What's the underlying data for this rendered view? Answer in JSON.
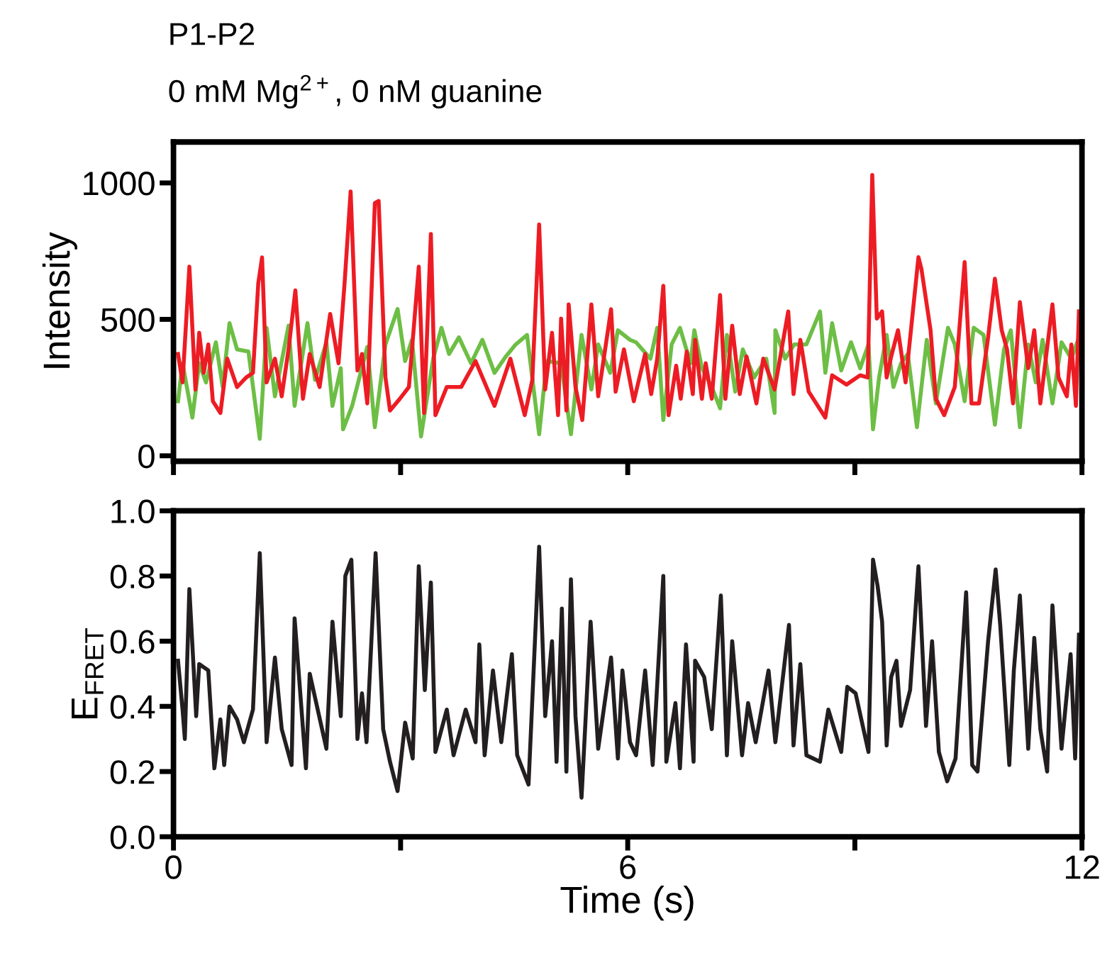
{
  "chart_data": [
    {
      "type": "line",
      "title": "P1-P2",
      "subtitle": "0 mM Mg$^{2+}$, 0 nM guanine",
      "ylabel": "Intensity",
      "xlim": [
        0,
        12
      ],
      "ylim": [
        -20,
        1150
      ],
      "yticks": [
        0,
        500,
        1000
      ],
      "xticks": [
        {
          "value": 0,
          "label": null
        },
        {
          "value": 3,
          "label": null
        },
        {
          "value": 6,
          "label": null
        },
        {
          "value": 9,
          "label": null
        },
        {
          "value": 12,
          "label": null
        }
      ],
      "tick_labels": "y",
      "grid": false,
      "legend": false,
      "marker": "none",
      "line_style": "solid",
      "series": [
        {
          "color": "#6dbe45",
          "x": [
            0.06,
            0.12,
            0.25,
            0.34,
            0.43,
            0.56,
            0.65,
            0.74,
            0.84,
            0.99,
            1.14,
            1.23,
            1.34,
            1.52,
            1.6,
            1.77,
            1.87,
            2.02,
            2.1,
            2.21,
            2.24,
            2.36,
            2.56,
            2.66,
            2.8,
            2.96,
            3.06,
            3.15,
            3.27,
            3.43,
            3.54,
            3.64,
            3.77,
            3.93,
            4.08,
            4.24,
            4.39,
            4.52,
            4.67,
            4.83,
            4.93,
            5.12,
            5.25,
            5.39,
            5.52,
            5.61,
            5.77,
            5.87,
            6.03,
            6.11,
            6.3,
            6.39,
            6.47,
            6.58,
            6.69,
            6.83,
            6.88,
            6.98,
            7.11,
            7.22,
            7.31,
            7.42,
            7.52,
            7.67,
            7.83,
            7.94,
            7.95,
            8.08,
            8.2,
            8.36,
            8.54,
            8.61,
            8.7,
            8.82,
            8.95,
            9.07,
            9.18,
            9.24,
            9.32,
            9.42,
            9.51,
            9.61,
            9.7,
            9.82,
            9.95,
            10.07,
            10.23,
            10.32,
            10.45,
            10.57,
            10.7,
            10.85,
            10.97,
            11.06,
            11.18,
            11.29,
            11.39,
            11.48,
            11.61,
            11.73,
            11.86,
            11.96
          ],
          "values": [
            200,
            339,
            140,
            339,
            269,
            416,
            252,
            486,
            390,
            382,
            62,
            469,
            218,
            477,
            183,
            486,
            278,
            416,
            183,
            321,
            97,
            183,
            399,
            105,
            408,
            538,
            347,
            425,
            71,
            356,
            469,
            373,
            434,
            339,
            425,
            304,
            364,
            408,
            443,
            79,
            347,
            339,
            79,
            443,
            243,
            408,
            304,
            460,
            425,
            416,
            356,
            469,
            131,
            408,
            469,
            339,
            460,
            321,
            252,
            174,
            443,
            235,
            390,
            287,
            356,
            157,
            460,
            356,
            408,
            408,
            529,
            304,
            486,
            313,
            416,
            321,
            408,
            97,
            287,
            443,
            252,
            339,
            373,
            105,
            425,
            192,
            469,
            408,
            200,
            469,
            443,
            114,
            390,
            460,
            105,
            408,
            269,
            425,
            192,
            416,
            356,
            434
          ]
        },
        {
          "color": "#ed1c24",
          "x": [
            0.06,
            0.12,
            0.21,
            0.29,
            0.34,
            0.4,
            0.46,
            0.52,
            0.62,
            0.71,
            0.84,
            0.96,
            1.05,
            1.12,
            1.17,
            1.23,
            1.34,
            1.43,
            1.52,
            1.61,
            1.71,
            1.8,
            1.93,
            2.07,
            2.18,
            2.26,
            2.34,
            2.43,
            2.49,
            2.56,
            2.66,
            2.71,
            2.8,
            2.86,
            2.99,
            3.11,
            3.24,
            3.31,
            3.4,
            3.46,
            3.61,
            3.8,
            3.99,
            4.24,
            4.45,
            4.64,
            4.74,
            4.83,
            4.91,
            5.0,
            5.08,
            5.12,
            5.19,
            5.22,
            5.31,
            5.4,
            5.52,
            5.61,
            5.78,
            5.84,
            5.95,
            6.08,
            6.23,
            6.31,
            6.39,
            6.47,
            6.54,
            6.64,
            6.7,
            6.78,
            6.86,
            6.89,
            6.98,
            7.03,
            7.11,
            7.22,
            7.29,
            7.38,
            7.48,
            7.57,
            7.7,
            7.79,
            7.94,
            8.12,
            8.19,
            8.28,
            8.39,
            8.61,
            8.7,
            8.89,
            9.07,
            9.17,
            9.23,
            9.29,
            9.36,
            9.42,
            9.48,
            9.57,
            9.67,
            9.84,
            9.88,
            10.0,
            10.07,
            10.18,
            10.32,
            10.45,
            10.54,
            10.64,
            10.76,
            10.85,
            10.94,
            11.01,
            11.09,
            11.18,
            11.29,
            11.37,
            11.45,
            11.61,
            11.69,
            11.8,
            11.86,
            11.92,
            11.96
          ],
          "values": [
            373,
            269,
            693,
            243,
            451,
            304,
            408,
            200,
            157,
            356,
            252,
            287,
            304,
            632,
            727,
            269,
            356,
            218,
            390,
            606,
            209,
            373,
            252,
            520,
            339,
            632,
            969,
            313,
            373,
            192,
            926,
            934,
            287,
            166,
            209,
            252,
            693,
            157,
            813,
            149,
            252,
            252,
            347,
            183,
            356,
            149,
            278,
            848,
            243,
            451,
            149,
            503,
            166,
            555,
            252,
            131,
            555,
            218,
            537,
            235,
            390,
            200,
            373,
            226,
            356,
            623,
            149,
            330,
            209,
            382,
            226,
            425,
            209,
            339,
            209,
            589,
            209,
            477,
            226,
            364,
            192,
            356,
            243,
            529,
            226,
            425,
            235,
            140,
            295,
            261,
            295,
            287,
            1029,
            503,
            529,
            287,
            364,
            460,
            269,
            728,
            684,
            460,
            209,
            149,
            252,
            710,
            192,
            192,
            434,
            649,
            460,
            390,
            192,
            563,
            321,
            460,
            192,
            555,
            287,
            218,
            408,
            183,
            529
          ]
        }
      ]
    },
    {
      "type": "line",
      "xlabel": "Time (s)",
      "ylabel": "E$_{FRET}$",
      "xlim": [
        0,
        12
      ],
      "ylim": [
        0,
        1.0
      ],
      "xticks": [
        0,
        {
          "value": 3,
          "label": null
        },
        6,
        {
          "value": 9,
          "label": null
        },
        12
      ],
      "yticks": [
        {
          "value": 0,
          "label": "0.0"
        },
        {
          "value": 0.2,
          "label": "0.2"
        },
        {
          "value": 0.4,
          "label": "0.4"
        },
        {
          "value": 0.6,
          "label": "0.6"
        },
        {
          "value": 0.8,
          "label": "0.8"
        },
        {
          "value": 1.0,
          "label": "1.0"
        }
      ],
      "grid": false,
      "legend": false,
      "marker": "none",
      "line_style": "solid",
      "series": [
        {
          "color": "#231f20",
          "x": [
            0.06,
            0.12,
            0.15,
            0.21,
            0.3,
            0.34,
            0.46,
            0.54,
            0.62,
            0.67,
            0.74,
            0.84,
            0.93,
            1.05,
            1.14,
            1.23,
            1.34,
            1.43,
            1.56,
            1.6,
            1.75,
            1.8,
            2.02,
            2.1,
            2.21,
            2.27,
            2.35,
            2.43,
            2.49,
            2.55,
            2.67,
            2.77,
            2.86,
            2.96,
            3.06,
            3.16,
            3.24,
            3.32,
            3.4,
            3.46,
            3.61,
            3.7,
            3.86,
            3.99,
            4.04,
            4.11,
            4.22,
            4.33,
            4.47,
            4.54,
            4.69,
            4.83,
            4.91,
            5.0,
            5.06,
            5.13,
            5.19,
            5.25,
            5.31,
            5.39,
            5.51,
            5.61,
            5.78,
            5.87,
            5.93,
            6.03,
            6.11,
            6.23,
            6.33,
            6.47,
            6.51,
            6.63,
            6.69,
            6.77,
            6.87,
            6.89,
            7.01,
            7.11,
            7.23,
            7.31,
            7.38,
            7.51,
            7.59,
            7.69,
            7.86,
            7.95,
            8.13,
            8.19,
            8.28,
            8.36,
            8.54,
            8.65,
            8.82,
            8.9,
            9.01,
            9.18,
            9.24,
            9.3,
            9.36,
            9.42,
            9.48,
            9.55,
            9.61,
            9.73,
            9.84,
            9.94,
            10.02,
            10.11,
            10.22,
            10.33,
            10.47,
            10.55,
            10.62,
            10.76,
            10.86,
            10.92,
            11.04,
            11.1,
            11.18,
            11.29,
            11.37,
            11.45,
            11.54,
            11.61,
            11.73,
            11.85,
            11.91,
            11.96
          ],
          "values": [
            0.54,
            0.39,
            0.3,
            0.76,
            0.37,
            0.53,
            0.51,
            0.21,
            0.36,
            0.22,
            0.4,
            0.36,
            0.29,
            0.39,
            0.87,
            0.29,
            0.55,
            0.33,
            0.22,
            0.67,
            0.21,
            0.5,
            0.27,
            0.66,
            0.37,
            0.8,
            0.85,
            0.3,
            0.44,
            0.29,
            0.87,
            0.33,
            0.23,
            0.14,
            0.35,
            0.24,
            0.83,
            0.45,
            0.78,
            0.26,
            0.39,
            0.25,
            0.39,
            0.29,
            0.59,
            0.25,
            0.51,
            0.29,
            0.56,
            0.25,
            0.16,
            0.89,
            0.37,
            0.6,
            0.23,
            0.7,
            0.2,
            0.79,
            0.37,
            0.12,
            0.66,
            0.27,
            0.55,
            0.24,
            0.51,
            0.29,
            0.25,
            0.51,
            0.22,
            0.8,
            0.23,
            0.41,
            0.21,
            0.59,
            0.23,
            0.54,
            0.49,
            0.33,
            0.74,
            0.25,
            0.6,
            0.25,
            0.41,
            0.29,
            0.51,
            0.29,
            0.65,
            0.28,
            0.53,
            0.25,
            0.23,
            0.39,
            0.26,
            0.46,
            0.44,
            0.26,
            0.85,
            0.77,
            0.66,
            0.28,
            0.49,
            0.54,
            0.34,
            0.45,
            0.83,
            0.34,
            0.6,
            0.26,
            0.17,
            0.24,
            0.75,
            0.22,
            0.2,
            0.6,
            0.82,
            0.65,
            0.22,
            0.51,
            0.74,
            0.27,
            0.61,
            0.33,
            0.2,
            0.71,
            0.27,
            0.56,
            0.24,
            0.62
          ]
        }
      ]
    }
  ]
}
